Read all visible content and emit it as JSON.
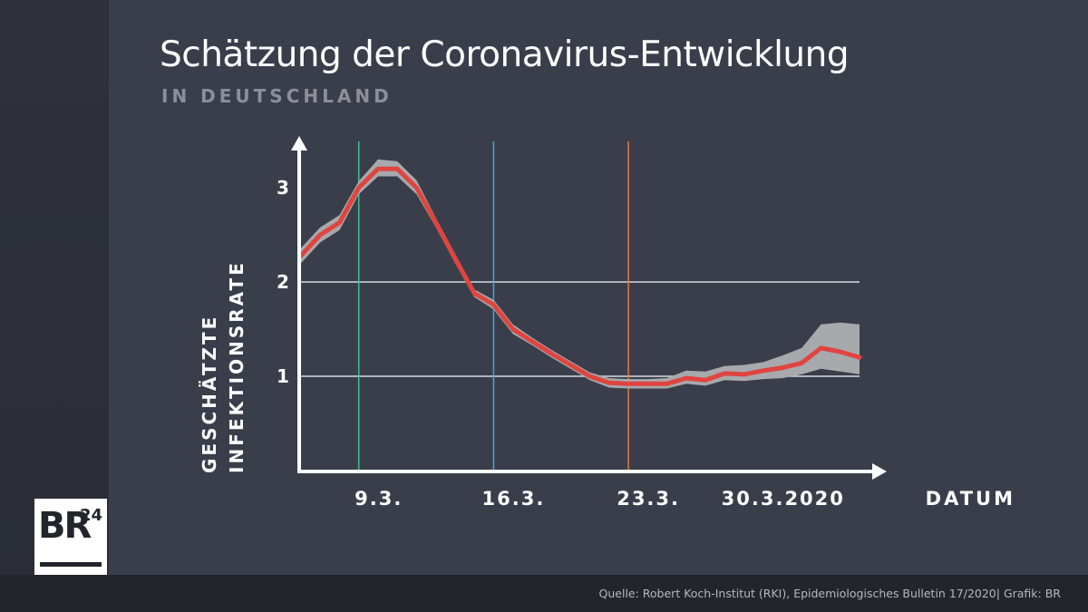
{
  "title": "Schätzung der Coronavirus-Entwicklung",
  "subtitle": "IN DEUTSCHLAND",
  "source": "Quelle: Robert Koch-Institut (RKI), Epidemiologisches Bulletin 17/2020| Grafik: BR",
  "logo": {
    "text": "BR",
    "superscript": "24"
  },
  "chart_data": {
    "type": "area",
    "title": "Schätzung der Coronavirus-Entwicklung",
    "subtitle": "IN DEUTSCHLAND",
    "ylabel_lines": [
      "GESCHÄTZTE",
      "INFEKTIONSRATE"
    ],
    "xlabel": "DATUM",
    "x_ticks": [
      {
        "label": "9.3.",
        "day": 9
      },
      {
        "label": "16.3.",
        "day": 16
      },
      {
        "label": "23.3.",
        "day": 23
      },
      {
        "label": "30.3.2020",
        "day": 30
      }
    ],
    "y_ticks": [
      1,
      2,
      3
    ],
    "xlim": [
      6,
      35
    ],
    "ylim": [
      0,
      3.5
    ],
    "reference_lines": [
      {
        "day": 9,
        "color": "#3fbf8f"
      },
      {
        "day": 16,
        "color": "#3fa6dc"
      },
      {
        "day": 23,
        "color": "#e07b3a"
      }
    ],
    "grid_y": [
      1,
      2
    ],
    "series_color": "#e0443f",
    "band_color": "#a7a9ad",
    "series": [
      {
        "x": [
          6,
          7,
          8,
          9,
          10,
          11,
          12,
          13,
          14,
          15,
          16,
          17,
          18,
          19,
          20,
          21,
          22,
          23,
          24,
          25,
          26,
          27,
          28,
          29,
          30,
          31,
          32,
          33,
          34,
          35
        ],
        "y": [
          2.28,
          2.5,
          2.63,
          3.0,
          3.2,
          3.2,
          3.0,
          2.63,
          2.25,
          1.88,
          1.76,
          1.5,
          1.37,
          1.24,
          1.12,
          1.0,
          0.93,
          0.92,
          0.92,
          0.92,
          0.98,
          0.96,
          1.03,
          1.02,
          1.06,
          1.09,
          1.14,
          1.3,
          1.26,
          1.2
        ],
        "lower": [
          2.2,
          2.42,
          2.55,
          2.93,
          3.12,
          3.12,
          2.93,
          2.58,
          2.2,
          1.84,
          1.71,
          1.45,
          1.33,
          1.2,
          1.08,
          0.96,
          0.88,
          0.87,
          0.87,
          0.87,
          0.92,
          0.9,
          0.96,
          0.95,
          0.97,
          0.98,
          1.02,
          1.08,
          1.05,
          1.02
        ],
        "upper": [
          2.36,
          2.58,
          2.71,
          3.07,
          3.3,
          3.28,
          3.08,
          2.68,
          2.3,
          1.92,
          1.81,
          1.55,
          1.41,
          1.28,
          1.16,
          1.04,
          0.98,
          0.97,
          0.97,
          0.98,
          1.06,
          1.05,
          1.11,
          1.12,
          1.15,
          1.22,
          1.3,
          1.55,
          1.57,
          1.55
        ]
      }
    ]
  }
}
